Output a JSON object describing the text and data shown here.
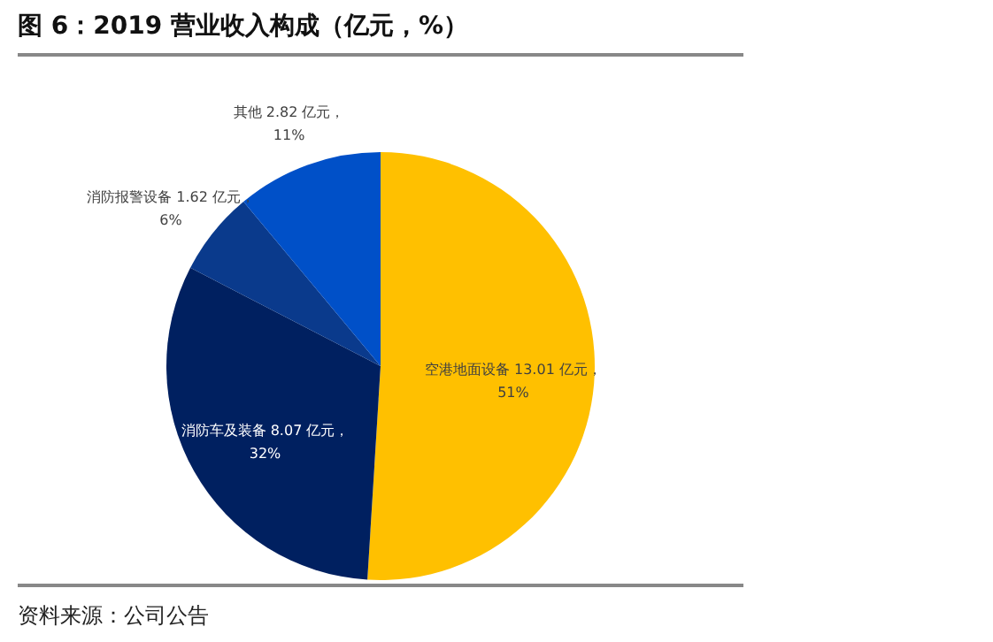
{
  "chart_data": {
    "type": "pie",
    "title": "图 6：2019 营业收入构成（亿元，%）",
    "categories": [
      "空港地面设备",
      "消防车及装备",
      "消防报警设备",
      "其他"
    ],
    "values": [
      13.01,
      8.07,
      1.62,
      2.82
    ],
    "value_labels": [
      "13.01 亿元，51%",
      "8.07 亿元，32%",
      "1.62 亿元，6%",
      "2.82 亿元，11%"
    ],
    "colors": [
      "#ffc000",
      "#002060",
      "#0a3a8c",
      "#0050c8"
    ],
    "annotations": [
      "资料来源：公司公告"
    ]
  }
}
